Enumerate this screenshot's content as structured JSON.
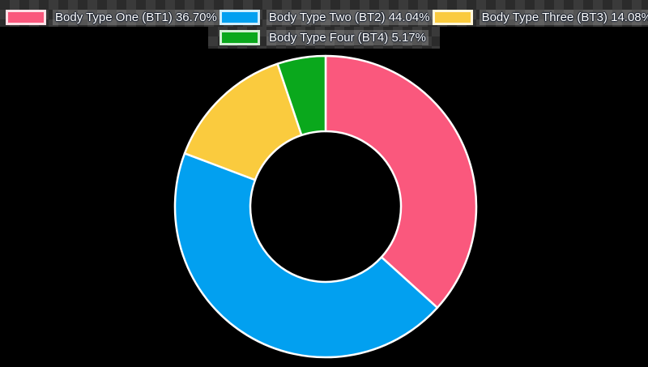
{
  "page": {
    "background_color": "#000000",
    "checker_light": "#3a3a3a",
    "checker_dark": "#2b2b2b"
  },
  "chart_data": {
    "type": "pie",
    "variant": "donut",
    "title": "",
    "legend_position": "top",
    "direction": "clockwise",
    "start_angle_deg": 0,
    "inner_radius_ratio": 0.5,
    "segment_stroke_color": "#ffffff",
    "slices": [
      {
        "label": "Body Type One (BT1)",
        "percent": 36.7,
        "color": "#FA587D",
        "legend_label": "Body Type One (BT1) 36.70%"
      },
      {
        "label": "Body Type Two (BT2)",
        "percent": 44.04,
        "color": "#02A0F0",
        "legend_label": "Body Type Two (BT2) 44.04%"
      },
      {
        "label": "Body Type Three (BT3)",
        "percent": 14.08,
        "color": "#FACB3E",
        "legend_label": "Body Type Three (BT3) 14.08%"
      },
      {
        "label": "Body Type Four (BT4)",
        "percent": 5.17,
        "color": "#0AA81C",
        "legend_label": "Body Type Four (BT4) 5.17%"
      }
    ]
  }
}
